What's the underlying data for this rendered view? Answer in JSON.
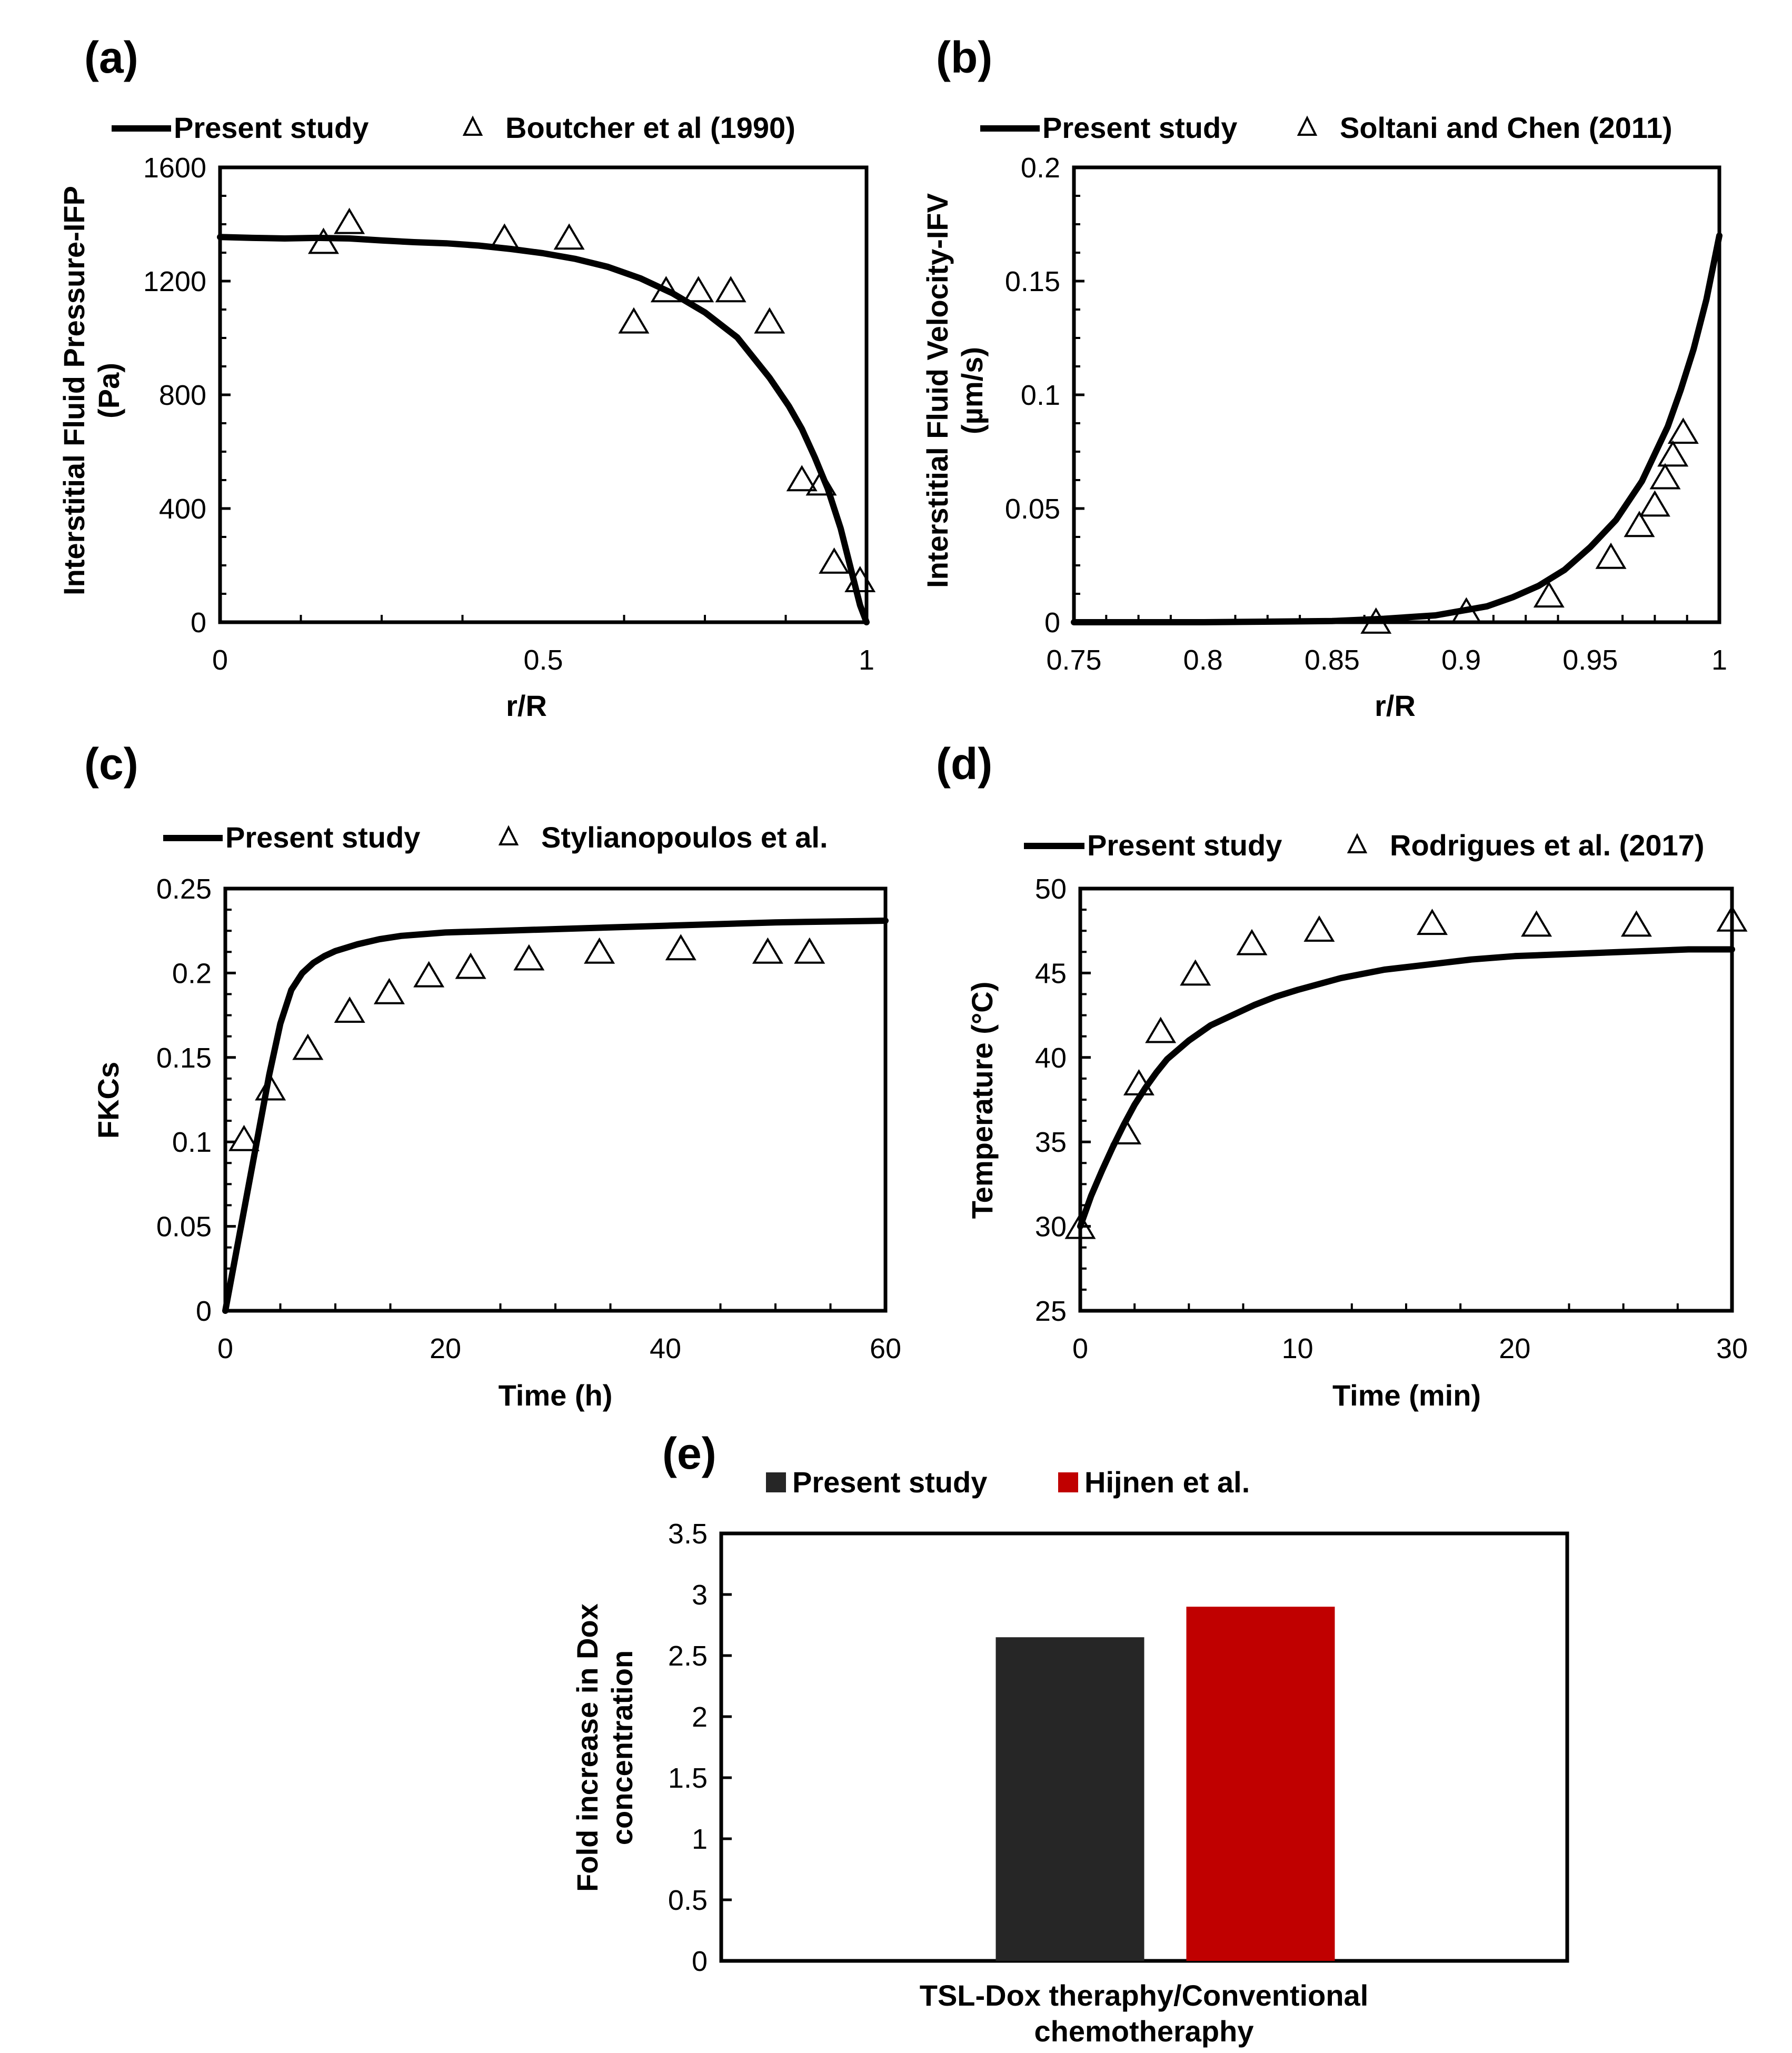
{
  "chart_data": [
    {
      "panel": "(a)",
      "type": "line",
      "xlabel": "r/R",
      "ylabel": [
        "Interstitial  Fluid Pressure-IFP",
        "(Pa)"
      ],
      "xlim": [
        0,
        1
      ],
      "ylim": [
        0,
        1600
      ],
      "xticks": [
        0,
        0.5,
        1
      ],
      "yticks": [
        0,
        400,
        800,
        1200,
        1600
      ],
      "x_tick_labels": [
        "0",
        "0.5",
        "1"
      ],
      "y_tick_labels": [
        "0",
        "400",
        "800",
        "1200",
        "1600"
      ],
      "series": [
        {
          "name": "Present study",
          "kind": "line",
          "x": [
            0,
            0.05,
            0.1,
            0.15,
            0.2,
            0.25,
            0.3,
            0.35,
            0.4,
            0.45,
            0.5,
            0.55,
            0.6,
            0.65,
            0.7,
            0.75,
            0.8,
            0.85,
            0.88,
            0.9,
            0.92,
            0.94,
            0.96,
            0.98,
            0.99,
            1.0
          ],
          "y": [
            1355,
            1352,
            1350,
            1352,
            1350,
            1343,
            1337,
            1333,
            1325,
            1313,
            1298,
            1278,
            1250,
            1210,
            1157,
            1090,
            1002,
            860,
            760,
            680,
            580,
            470,
            330,
            150,
            60,
            0
          ]
        },
        {
          "name": "Boutcher et al (1990)",
          "kind": "marker",
          "x": [
            0.16,
            0.2,
            0.44,
            0.54,
            0.64,
            0.69,
            0.74,
            0.79,
            0.85,
            0.9,
            0.93,
            0.95,
            0.99
          ],
          "y": [
            1340,
            1410,
            1355,
            1355,
            1060,
            1170,
            1170,
            1170,
            1060,
            505,
            490,
            215,
            150
          ]
        }
      ]
    },
    {
      "panel": "(b)",
      "type": "line",
      "xlabel": "r/R",
      "ylabel": [
        "Interstitial  Fluid Velocity-IFV",
        "(µm/s)"
      ],
      "xlim": [
        0.75,
        1
      ],
      "ylim": [
        0,
        0.2
      ],
      "xticks": [
        0.75,
        0.8,
        0.85,
        0.9,
        0.95,
        1
      ],
      "yticks": [
        0,
        0.05,
        0.1,
        0.15,
        0.2
      ],
      "x_tick_labels": [
        "0.75",
        "0.8",
        "0.85",
        "0.9",
        "0.95",
        "1"
      ],
      "y_tick_labels": [
        "0",
        "0.05",
        "0.1",
        "0.15",
        "0.2"
      ],
      "series": [
        {
          "name": "Present study",
          "kind": "line",
          "x": [
            0.75,
            0.8,
            0.85,
            0.87,
            0.89,
            0.9,
            0.91,
            0.92,
            0.93,
            0.94,
            0.95,
            0.96,
            0.97,
            0.98,
            0.985,
            0.99,
            0.995,
            1.0
          ],
          "y": [
            0,
            0,
            0.0005,
            0.0015,
            0.003,
            0.005,
            0.007,
            0.011,
            0.016,
            0.023,
            0.033,
            0.045,
            0.062,
            0.086,
            0.102,
            0.12,
            0.142,
            0.17
          ]
        },
        {
          "name": "Soltani and Chen (2011)",
          "kind": "marker",
          "x": [
            0.867,
            0.902,
            0.934,
            0.958,
            0.969,
            0.975,
            0.979,
            0.982,
            0.986
          ],
          "y": [
            0.0005,
            0.005,
            0.012,
            0.029,
            0.043,
            0.052,
            0.064,
            0.074,
            0.084
          ]
        }
      ]
    },
    {
      "panel": "(c)",
      "type": "line",
      "xlabel": "Time (h)",
      "ylabel": [
        "FKCs"
      ],
      "xlim": [
        0,
        60
      ],
      "ylim": [
        0,
        0.25
      ],
      "xticks": [
        0,
        20,
        40,
        60
      ],
      "yticks": [
        0,
        0.05,
        0.1,
        0.15,
        0.2,
        0.25
      ],
      "x_tick_labels": [
        "0",
        "20",
        "40",
        "60"
      ],
      "y_tick_labels": [
        "0",
        "0.05",
        "0.1",
        "0.15",
        "0.2",
        "0.25"
      ],
      "series": [
        {
          "name": "Present study",
          "kind": "line",
          "x": [
            0,
            1,
            2,
            3,
            4,
            5,
            6,
            7,
            8,
            9,
            10,
            12,
            14,
            16,
            20,
            25,
            30,
            40,
            50,
            60
          ],
          "y": [
            0,
            0.035,
            0.07,
            0.105,
            0.14,
            0.17,
            0.19,
            0.2,
            0.206,
            0.21,
            0.213,
            0.217,
            0.22,
            0.222,
            0.224,
            0.225,
            0.226,
            0.228,
            0.23,
            0.231
          ]
        },
        {
          "name": "Stylianopoulos et al.",
          "kind": "marker",
          "x": [
            1.7,
            4.1,
            7.5,
            11.3,
            14.9,
            18.5,
            22.3,
            27.6,
            34,
            41.4,
            49.3,
            53.1
          ],
          "y": [
            0.102,
            0.132,
            0.156,
            0.178,
            0.189,
            0.199,
            0.204,
            0.209,
            0.213,
            0.215,
            0.213,
            0.213
          ]
        }
      ]
    },
    {
      "panel": "(d)",
      "type": "line",
      "xlabel": "Time (min)",
      "ylabel": [
        "Temperature (°C)"
      ],
      "xlim": [
        0,
        30
      ],
      "ylim": [
        25,
        50
      ],
      "xticks": [
        0,
        10,
        20,
        30
      ],
      "yticks": [
        25,
        30,
        35,
        40,
        45,
        50
      ],
      "x_tick_labels": [
        "0",
        "10",
        "20",
        "30"
      ],
      "y_tick_labels": [
        "25",
        "30",
        "35",
        "40",
        "45",
        "50"
      ],
      "series": [
        {
          "name": "Present study",
          "kind": "line",
          "x": [
            0,
            0.5,
            1,
            1.5,
            2,
            2.5,
            3,
            3.5,
            4,
            5,
            6,
            7,
            8,
            9,
            10,
            12,
            14,
            16,
            18,
            20,
            22,
            24,
            26,
            28,
            30
          ],
          "y": [
            30,
            31.8,
            33.3,
            34.7,
            36,
            37.2,
            38.2,
            39.1,
            39.9,
            41,
            41.9,
            42.5,
            43.1,
            43.6,
            44,
            44.7,
            45.2,
            45.5,
            45.8,
            46,
            46.1,
            46.2,
            46.3,
            46.4,
            46.4
          ]
        },
        {
          "name": "Rodrigues et al. (2017)",
          "kind": "marker",
          "x": [
            0,
            2.1,
            2.7,
            3.7,
            5.3,
            7.9,
            11,
            16.2,
            21,
            25.6,
            30
          ],
          "y": [
            30,
            35.6,
            38.5,
            41.6,
            45,
            46.8,
            47.6,
            48,
            47.9,
            47.9,
            48.2
          ]
        }
      ]
    },
    {
      "panel": "(e)",
      "type": "bar",
      "xlabel": [
        "TSL-Dox theraphy/Conventional",
        "chemotheraphy"
      ],
      "ylabel": [
        "Fold increase in Dox",
        "concentration"
      ],
      "ylim": [
        0,
        3.5
      ],
      "yticks": [
        0,
        0.5,
        1,
        1.5,
        2,
        2.5,
        3,
        3.5
      ],
      "y_tick_labels": [
        "0",
        "0.5",
        "1",
        "1.5",
        "2",
        "2.5",
        "3",
        "3.5"
      ],
      "categories": [
        "TSL-Dox theraphy/Conventional chemotheraphy"
      ],
      "series": [
        {
          "name": "Present study",
          "values": [
            2.65
          ],
          "color": "#262626"
        },
        {
          "name": "Hijnen et al.",
          "values": [
            2.9
          ],
          "color": "#c00000"
        }
      ]
    }
  ]
}
